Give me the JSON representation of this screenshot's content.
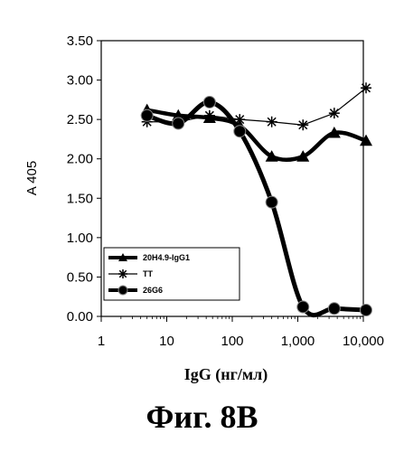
{
  "caption": "Фиг. 8B",
  "chart_data": {
    "type": "line",
    "title": "",
    "xlabel": "IgG (нг/мл)",
    "ylabel": "A 405",
    "xscale": "log",
    "xlim": [
      1,
      10000
    ],
    "ylim": [
      0,
      3.5
    ],
    "x_ticks": [
      1,
      10,
      100,
      1000,
      10000
    ],
    "x_tick_labels": [
      "1",
      "10",
      "100",
      "1,000",
      "10,000"
    ],
    "y_ticks": [
      0,
      0.5,
      1,
      1.5,
      2,
      2.5,
      3,
      3.5
    ],
    "y_tick_labels": [
      "0.00",
      "0.50",
      "1.00",
      "1.50",
      "2.00",
      "2.50",
      "3.00",
      "3.50"
    ],
    "grid": false,
    "legend_position": "bottom-left",
    "series": [
      {
        "name": "20H4.9-IgG1",
        "marker": "triangle",
        "color": "#000000",
        "x": [
          5,
          15,
          45,
          130,
          400,
          1200,
          3600,
          11000
        ],
        "y": [
          2.62,
          2.55,
          2.52,
          2.42,
          2.03,
          2.03,
          2.33,
          2.23
        ]
      },
      {
        "name": "TT",
        "marker": "star",
        "color": "#000000",
        "x": [
          5,
          15,
          45,
          130,
          400,
          1200,
          3600,
          11000
        ],
        "y": [
          2.47,
          2.47,
          2.55,
          2.5,
          2.47,
          2.43,
          2.58,
          2.9
        ]
      },
      {
        "name": "26G6",
        "marker": "circle",
        "color": "#000000",
        "x": [
          5,
          15,
          45,
          130,
          400,
          1200,
          3600,
          11000
        ],
        "y": [
          2.55,
          2.45,
          2.72,
          2.35,
          1.45,
          0.12,
          0.1,
          0.08
        ]
      }
    ]
  }
}
